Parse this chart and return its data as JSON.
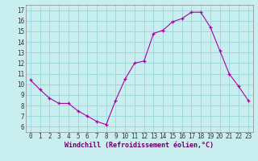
{
  "title": "",
  "xlabel": "Windchill (Refroidissement éolien,°C)",
  "ylabel": "",
  "bg_color": "#c8eef0",
  "grid_color": "#a0d8dc",
  "line_color": "#aa00aa",
  "marker_color": "#aa00aa",
  "xlim": [
    -0.5,
    23.5
  ],
  "ylim": [
    5.5,
    17.5
  ],
  "xticks": [
    0,
    1,
    2,
    3,
    4,
    5,
    6,
    7,
    8,
    9,
    10,
    11,
    12,
    13,
    14,
    15,
    16,
    17,
    18,
    19,
    20,
    21,
    22,
    23
  ],
  "yticks": [
    6,
    7,
    8,
    9,
    10,
    11,
    12,
    13,
    14,
    15,
    16,
    17
  ],
  "hours": [
    0,
    1,
    2,
    3,
    4,
    5,
    6,
    7,
    8,
    9,
    10,
    11,
    12,
    13,
    14,
    15,
    16,
    17,
    18,
    19,
    20,
    21,
    22,
    23
  ],
  "values": [
    10.4,
    9.5,
    8.7,
    8.2,
    8.2,
    7.5,
    7.0,
    6.5,
    6.2,
    8.5,
    10.5,
    12.0,
    12.2,
    14.8,
    15.1,
    15.9,
    16.2,
    16.8,
    16.8,
    15.4,
    13.2,
    11.0,
    9.8,
    8.5
  ]
}
